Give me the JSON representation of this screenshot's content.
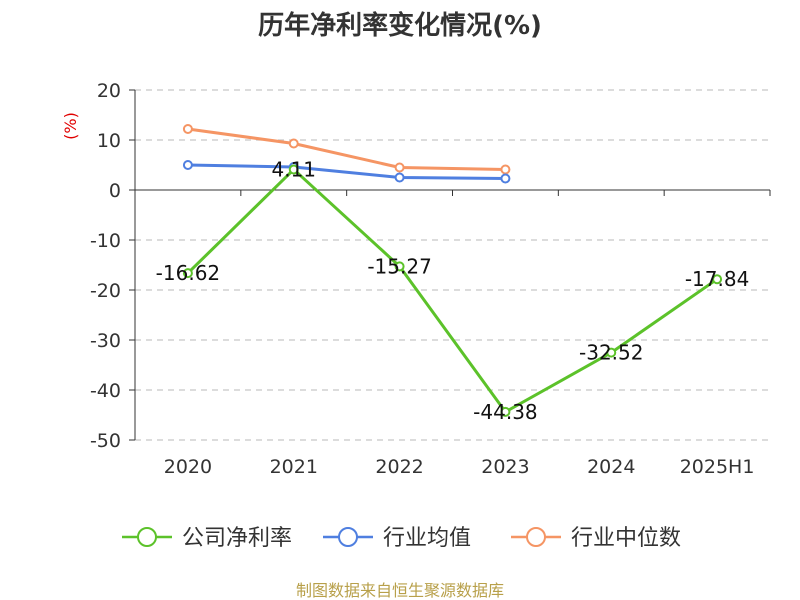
{
  "chart_data": {
    "type": "line",
    "title": "历年净利率变化情况(%)",
    "ylabel": "(%)",
    "categories": [
      "2020",
      "2021",
      "2022",
      "2023",
      "2024",
      "2025H1"
    ],
    "ylim": [
      -50,
      20
    ],
    "yticks": [
      20,
      10,
      0,
      -10,
      -20,
      -30,
      -40,
      -50
    ],
    "grid": true,
    "legend_position": "bottom",
    "series": [
      {
        "name": "公司净利率",
        "color": "#5cc22a",
        "values": [
          -16.62,
          4.11,
          -15.27,
          -44.38,
          -32.52,
          -17.84
        ],
        "labels": [
          "-16.62",
          "4.11",
          "-15.27",
          "-44.38",
          "-32.52",
          "-17.84"
        ]
      },
      {
        "name": "行业均值",
        "color": "#4f7fe0",
        "values": [
          5.0,
          4.6,
          2.5,
          2.3,
          null,
          null
        ]
      },
      {
        "name": "行业中位数",
        "color": "#f59564",
        "values": [
          12.2,
          9.3,
          4.5,
          4.1,
          null,
          null
        ]
      }
    ]
  },
  "footer": "制图数据来自恒生聚源数据库"
}
